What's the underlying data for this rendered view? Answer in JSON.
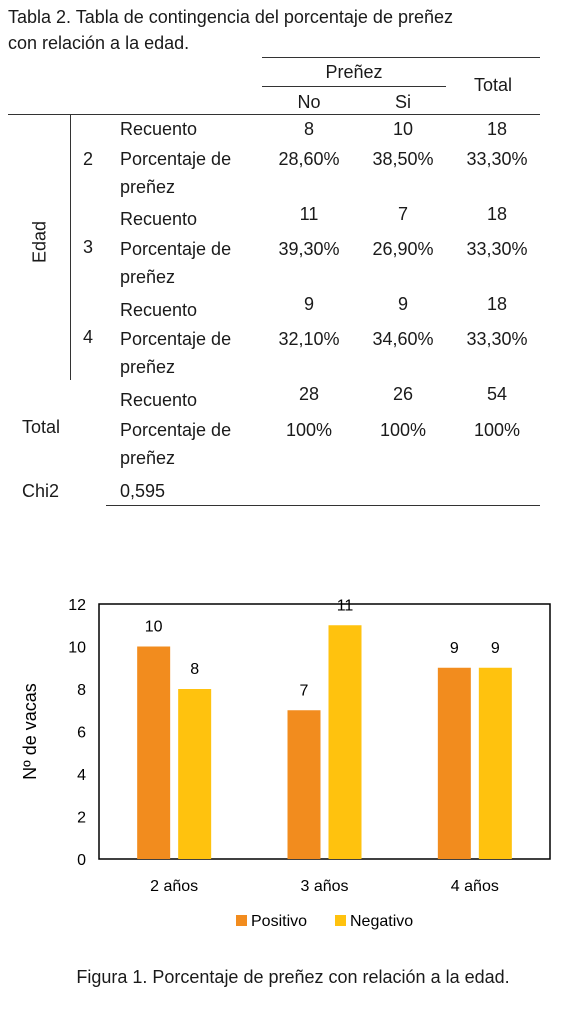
{
  "table": {
    "caption_line1": "Tabla 2. Tabla de contingencia del porcentaje de preñez",
    "caption_line2": "con relación a la edad.",
    "header": {
      "group": "Preñez",
      "no": "No",
      "si": "Si",
      "total": "Total"
    },
    "row_group_label": "Edad",
    "groups": [
      {
        "age": "2",
        "count_label": "Recuento",
        "pct_label_1": "Porcentaje de",
        "pct_label_2": "preñez",
        "no_count": "8",
        "si_count": "10",
        "total_count": "18",
        "no_pct": "28,60%",
        "si_pct": "38,50%",
        "total_pct": "33,30%"
      },
      {
        "age": "3",
        "count_label": "Recuento",
        "pct_label_1": "Porcentaje de",
        "pct_label_2": "preñez",
        "no_count": "11",
        "si_count": "7",
        "total_count": "18",
        "no_pct": "39,30%",
        "si_pct": "26,90%",
        "total_pct": "33,30%"
      },
      {
        "age": "4",
        "count_label": "Recuento",
        "pct_label_1": "Porcentaje de",
        "pct_label_2": "preñez",
        "no_count": "9",
        "si_count": "9",
        "total_count": "18",
        "no_pct": "32,10%",
        "si_pct": "34,60%",
        "total_pct": "33,30%"
      }
    ],
    "total_row": {
      "label": "Total",
      "count_label": "Recuento",
      "pct_label_1": "Porcentaje de",
      "pct_label_2": "preñez",
      "no_count": "28",
      "si_count": "26",
      "total_count": "54",
      "no_pct": "100%",
      "si_pct": "100%",
      "total_pct": "100%"
    },
    "chi_row": {
      "label": "Chi2",
      "value": "0,595"
    }
  },
  "chart_data": {
    "type": "bar",
    "categories": [
      "2 años",
      "3 años",
      "4 años"
    ],
    "series": [
      {
        "name": "Positivo",
        "values": [
          10,
          7,
          9
        ],
        "color": "#f28c1e"
      },
      {
        "name": "Negativo",
        "values": [
          8,
          11,
          9
        ],
        "color": "#ffc20e"
      }
    ],
    "ylabel": "Nº de vacas",
    "xlabel": "",
    "ylim": [
      0,
      12
    ],
    "yticks": [
      0,
      2,
      4,
      6,
      8,
      10,
      12
    ],
    "grid": false,
    "legend_position": "bottom",
    "data_labels": true
  },
  "figure_caption": "Figura 1. Porcentaje de preñez con relación a la edad."
}
